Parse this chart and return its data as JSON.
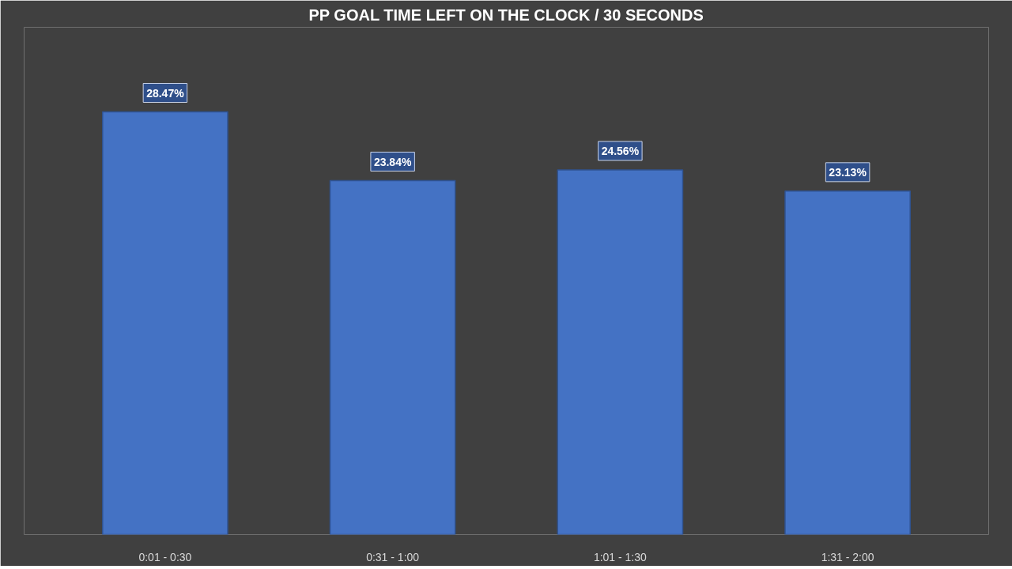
{
  "chart_data": {
    "type": "bar",
    "title": "PP GOAL TIME LEFT ON THE CLOCK / 30 SECONDS",
    "categories": [
      "0:01 - 0:30",
      "0:31 - 1:00",
      "1:01 - 1:30",
      "1:31 - 2:00"
    ],
    "values": [
      28.47,
      23.84,
      24.56,
      23.13
    ],
    "value_labels": [
      "28.47%",
      "23.84%",
      "24.56%",
      "23.13%"
    ],
    "color": "#4472c4"
  }
}
